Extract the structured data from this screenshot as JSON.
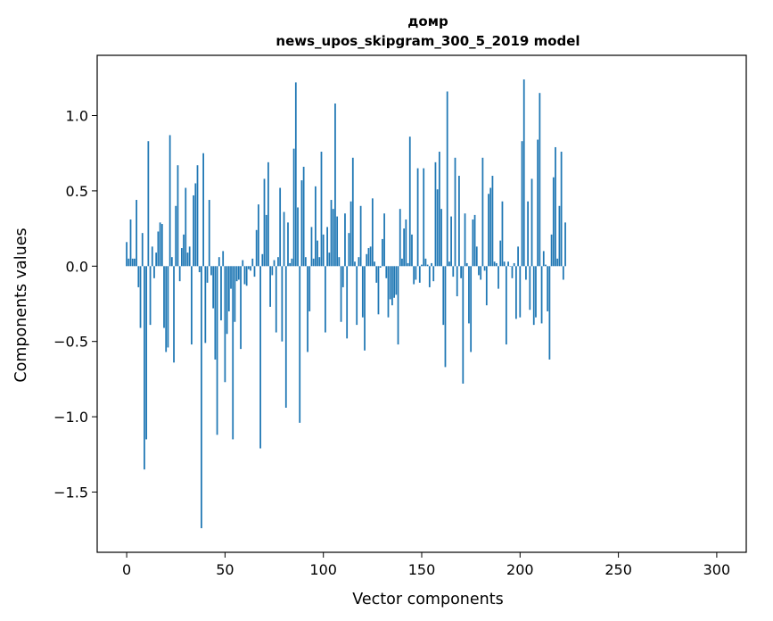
{
  "chart_data": {
    "type": "bar",
    "title": "домр",
    "subtitle": "news_upos_skipgram_300_5_2019 model",
    "xlabel": "Vector components",
    "ylabel": "Components values",
    "xlim": [
      -15,
      315
    ],
    "ylim": [
      -1.9,
      1.4
    ],
    "xticks": [
      0,
      50,
      100,
      150,
      200,
      250,
      300
    ],
    "yticks": [
      -1.5,
      -1.0,
      -0.5,
      0.0,
      0.5,
      1.0
    ],
    "ytick_labels": [
      "−1.5",
      "−1.0",
      "−0.5",
      "0.0",
      "0.5",
      "1.0"
    ],
    "grid": false,
    "bar_color": "#1f77b4",
    "x_start": 0,
    "values": [
      0.16,
      0.05,
      0.31,
      0.05,
      0.05,
      0.44,
      -0.14,
      -0.41,
      0.22,
      -1.35,
      -1.15,
      0.83,
      -0.39,
      0.13,
      -0.08,
      0.09,
      0.23,
      0.29,
      0.28,
      -0.41,
      -0.57,
      -0.54,
      0.87,
      0.06,
      -0.64,
      0.4,
      0.67,
      -0.1,
      0.12,
      0.21,
      0.52,
      0.09,
      0.13,
      -0.52,
      0.47,
      0.55,
      0.67,
      -0.04,
      -1.74,
      0.75,
      -0.51,
      -0.11,
      0.44,
      -0.06,
      -0.28,
      -0.62,
      -1.12,
      0.06,
      -0.36,
      0.1,
      -0.77,
      -0.45,
      -0.3,
      -0.15,
      -1.15,
      -0.37,
      -0.1,
      -0.09,
      -0.55,
      0.04,
      -0.12,
      -0.13,
      -0.02,
      -0.03,
      0.05,
      -0.07,
      0.24,
      0.41,
      -1.21,
      0.08,
      0.58,
      0.34,
      0.69,
      -0.27,
      -0.06,
      0.04,
      -0.44,
      0.06,
      0.52,
      -0.5,
      0.36,
      -0.94,
      0.29,
      0.02,
      0.05,
      0.78,
      1.22,
      0.39,
      -1.04,
      0.57,
      0.66,
      0.06,
      -0.57,
      -0.3,
      0.26,
      0.05,
      0.53,
      0.17,
      0.06,
      0.76,
      0.21,
      -0.44,
      0.26,
      0.09,
      0.44,
      0.38,
      1.08,
      0.33,
      0.06,
      -0.37,
      -0.14,
      0.35,
      -0.48,
      0.22,
      0.43,
      0.72,
      0.03,
      -0.39,
      0.06,
      0.4,
      -0.34,
      -0.56,
      0.08,
      0.12,
      0.13,
      0.45,
      0.03,
      -0.11,
      -0.32,
      -0.01,
      0.18,
      0.35,
      -0.08,
      -0.34,
      -0.22,
      -0.26,
      -0.21,
      -0.19,
      -0.52,
      0.38,
      0.05,
      0.25,
      0.31,
      0.02,
      0.86,
      0.21,
      -0.12,
      -0.09,
      0.65,
      -0.11,
      0.01,
      0.65,
      0.05,
      0.01,
      -0.14,
      0.02,
      -0.1,
      0.69,
      0.51,
      0.76,
      0.38,
      -0.39,
      -0.67,
      1.16,
      0.03,
      0.33,
      -0.07,
      0.72,
      -0.2,
      0.6,
      -0.08,
      -0.78,
      0.35,
      0.02,
      -0.38,
      -0.57,
      0.31,
      0.34,
      0.13,
      -0.06,
      -0.09,
      0.72,
      -0.03,
      -0.26,
      0.48,
      0.52,
      0.6,
      0.03,
      0.02,
      -0.15,
      0.17,
      0.43,
      0.03,
      -0.52,
      0.03,
      0.0,
      -0.08,
      0.02,
      -0.35,
      0.13,
      -0.34,
      0.83,
      1.24,
      -0.09,
      0.43,
      -0.29,
      0.58,
      -0.39,
      -0.34,
      0.84,
      1.15,
      -0.38,
      0.1,
      0.01,
      -0.3,
      -0.62,
      0.21,
      0.59,
      0.79,
      0.05,
      0.4,
      0.76,
      -0.09,
      0.29
    ]
  }
}
